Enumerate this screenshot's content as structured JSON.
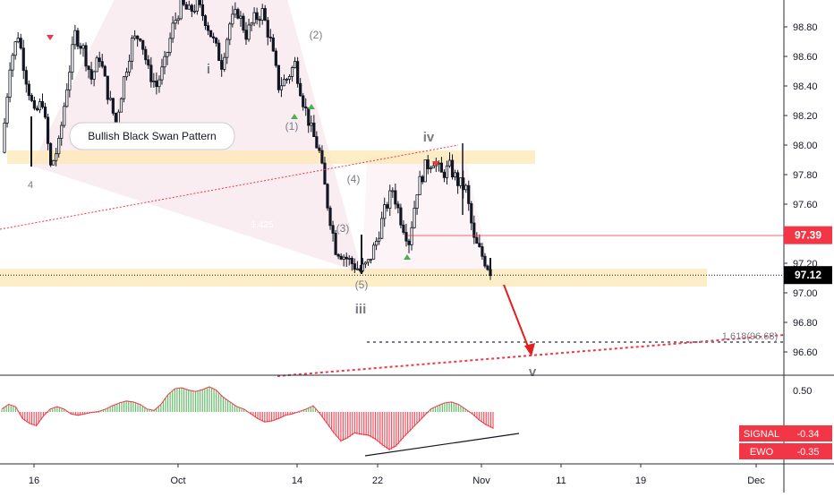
{
  "chart_data": {
    "type": "candlestick",
    "price_axis": {
      "ticks": [
        "98.80",
        "98.60",
        "98.40",
        "98.20",
        "98.00",
        "97.80",
        "97.60",
        "97.40",
        "97.20",
        "97.00",
        "96.80",
        "96.60"
      ],
      "tick_values": [
        98.8,
        98.6,
        98.4,
        98.2,
        98.0,
        97.8,
        97.6,
        97.4,
        97.2,
        97.0,
        96.8,
        96.6
      ],
      "ylim": [
        96.5,
        98.95
      ]
    },
    "time_axis": {
      "ticks": [
        "16",
        "Oct",
        "14",
        "22",
        "Nov",
        "11",
        "19",
        "Dec"
      ]
    },
    "price_labels": [
      {
        "text": "97.39",
        "value": 97.39,
        "color": "#f23645"
      },
      {
        "text": "97.12",
        "value": 97.12,
        "color": "#000000"
      }
    ],
    "annotations": {
      "pattern_label": "Bullish Black Swan Pattern",
      "pattern_ratio": "1.425",
      "fib_label": "1.618(96.68)",
      "waves_minor": [
        "(1)",
        "(2)",
        "(3)",
        "(4)",
        "(5)"
      ],
      "waves_major": [
        "i",
        "iii",
        "iv",
        "v"
      ],
      "wave_extra": "4"
    },
    "close_series": [
      97.95,
      98.55,
      98.75,
      98.45,
      98.2,
      98.3,
      97.85,
      98.0,
      98.4,
      98.75,
      98.65,
      98.45,
      98.6,
      98.35,
      98.15,
      98.45,
      98.7,
      98.75,
      98.5,
      98.4,
      98.55,
      98.8,
      98.95,
      98.9,
      98.95,
      98.85,
      98.7,
      98.55,
      98.82,
      98.9,
      98.75,
      98.85,
      98.9,
      98.7,
      98.4,
      98.45,
      98.55,
      98.3,
      98.1,
      97.95,
      97.6,
      97.3,
      97.25,
      97.2,
      97.15,
      97.2,
      97.35,
      97.55,
      97.7,
      97.5,
      97.35,
      97.7,
      97.85,
      97.9,
      97.8,
      97.85,
      97.75,
      97.7,
      97.35,
      97.25,
      97.15
    ],
    "oscillator": {
      "axis_ticks": [
        "0.50"
      ],
      "axis_values": [
        0.5
      ],
      "ylim": [
        -0.8,
        0.55
      ],
      "values": [
        0.05,
        0.15,
        0.1,
        -0.15,
        -0.25,
        -0.3,
        -0.1,
        0.05,
        0.1,
        0.05,
        -0.05,
        -0.08,
        -0.05,
        -0.02,
        0.0,
        0.05,
        0.12,
        0.18,
        0.22,
        0.2,
        0.15,
        0.05,
        0.02,
        0.15,
        0.35,
        0.48,
        0.5,
        0.45,
        0.42,
        0.46,
        0.52,
        0.45,
        0.3,
        0.2,
        0.1,
        0.05,
        -0.05,
        -0.15,
        -0.22,
        -0.2,
        -0.15,
        -0.08,
        -0.05,
        0.0,
        0.05,
        0.12,
        -0.05,
        -0.25,
        -0.45,
        -0.62,
        -0.55,
        -0.45,
        -0.48,
        -0.5,
        -0.58,
        -0.7,
        -0.8,
        -0.72,
        -0.55,
        -0.4,
        -0.25,
        -0.1,
        0.05,
        0.12,
        0.18,
        0.2,
        0.15,
        0.05,
        -0.05,
        -0.18,
        -0.28,
        -0.35
      ],
      "labels": [
        {
          "text": "SIGNAL",
          "value_text": "-0.34",
          "value": -0.34
        },
        {
          "text": "EWO",
          "value_text": "-0.35",
          "value": -0.35
        }
      ]
    }
  }
}
